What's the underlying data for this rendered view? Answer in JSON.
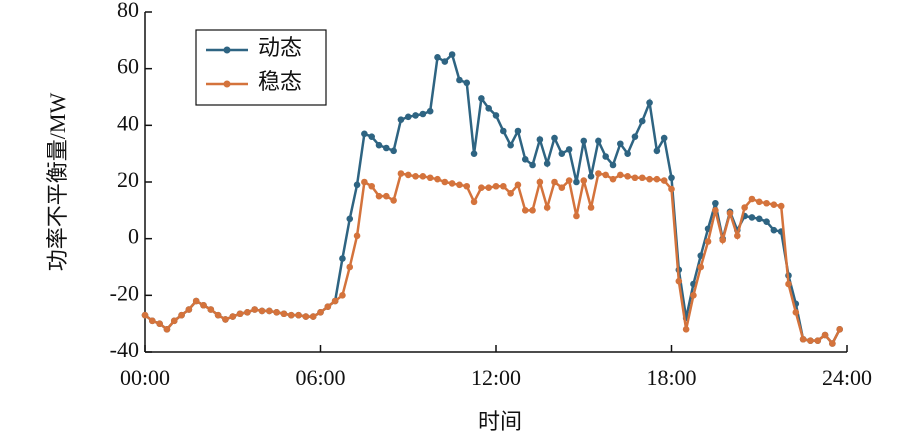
{
  "chart_data": {
    "type": "line",
    "x_label": "时间",
    "y_label": "功率不平衡量/MW",
    "x": [
      0,
      0.25,
      0.5,
      0.75,
      1,
      1.25,
      1.5,
      1.75,
      2,
      2.25,
      2.5,
      2.75,
      3,
      3.25,
      3.5,
      3.75,
      4,
      4.25,
      4.5,
      4.75,
      5,
      5.25,
      5.5,
      5.75,
      6,
      6.25,
      6.5,
      6.75,
      7,
      7.25,
      7.5,
      7.75,
      8,
      8.25,
      8.5,
      8.75,
      9,
      9.25,
      9.5,
      9.75,
      10,
      10.25,
      10.5,
      10.75,
      11,
      11.25,
      11.5,
      11.75,
      12,
      12.25,
      12.5,
      12.75,
      13,
      13.25,
      13.5,
      13.75,
      14,
      14.25,
      14.5,
      14.75,
      15,
      15.25,
      15.5,
      15.75,
      16,
      16.25,
      16.5,
      16.75,
      17,
      17.25,
      17.5,
      17.75,
      18,
      18.25,
      18.5,
      18.75,
      19,
      19.25,
      19.5,
      19.75,
      20,
      20.25,
      20.5,
      20.75,
      21,
      21.25,
      21.5,
      21.75,
      22,
      22.25,
      22.5,
      22.75,
      23,
      23.25,
      23.5,
      23.75
    ],
    "series": [
      {
        "name": "动态",
        "color": "#2e6482",
        "values": [
          -27,
          -29,
          -30,
          -32,
          -29,
          -27,
          -25,
          -22,
          -23.5,
          -25,
          -27,
          -28.5,
          -27.5,
          -26.5,
          -26,
          -25,
          -25.5,
          -25.5,
          -26,
          -26.5,
          -27,
          -27,
          -27.5,
          -27.5,
          -26,
          -24,
          -22,
          -7,
          7,
          19,
          37,
          36,
          33,
          32,
          31,
          42,
          43,
          43.5,
          44,
          45,
          64,
          62.5,
          65,
          56,
          55,
          30,
          49.5,
          46,
          43.5,
          38,
          33,
          38,
          28,
          26,
          35,
          26.5,
          35.5,
          30,
          31.5,
          20,
          34.5,
          22,
          34.5,
          29,
          26,
          33.5,
          30,
          36,
          41.5,
          48,
          31,
          35.5,
          21.5,
          -11,
          -28,
          -16,
          -6,
          3.5,
          12.5,
          0,
          9.5,
          3,
          8,
          7.5,
          7,
          6,
          3,
          2.5,
          -13,
          -23,
          -35.5,
          -36,
          -36,
          -34,
          -37,
          -32
        ]
      },
      {
        "name": "稳态",
        "color": "#d4733c",
        "values": [
          -27,
          -29,
          -30,
          -32,
          -29,
          -27,
          -25,
          -22,
          -23.5,
          -25,
          -27,
          -28.5,
          -27.5,
          -26.5,
          -26,
          -25,
          -25.5,
          -25.5,
          -26,
          -26.5,
          -27,
          -27,
          -27.5,
          -27.5,
          -26,
          -24,
          -22,
          -20,
          -10,
          1,
          20,
          18.5,
          15,
          15,
          13.5,
          23,
          22.5,
          22,
          22,
          21.5,
          21,
          20,
          19.5,
          19,
          18.5,
          13,
          18,
          18,
          18.5,
          18.5,
          16,
          19,
          10,
          10,
          20,
          11,
          20,
          18,
          20.5,
          8,
          20.5,
          11,
          23,
          22.5,
          21,
          22.5,
          22,
          21.5,
          21.5,
          21,
          21,
          20.5,
          17.5,
          -15,
          -32,
          -20,
          -10,
          -1,
          10,
          -0.5,
          9,
          1,
          11,
          14,
          13,
          12.5,
          12,
          11.5,
          -16,
          -26,
          -35.5,
          -36,
          -36,
          -34,
          -37,
          -32
        ]
      }
    ],
    "xlim": [
      0,
      24
    ],
    "xticks": [
      {
        "value": 0,
        "label": "00:00"
      },
      {
        "value": 6,
        "label": "06:00"
      },
      {
        "value": 12,
        "label": "12:00"
      },
      {
        "value": 18,
        "label": "18:00"
      },
      {
        "value": 24,
        "label": "24:00"
      }
    ],
    "ylim": [
      -40,
      80
    ],
    "yticks": [
      -40,
      -20,
      0,
      20,
      40,
      60,
      80
    ],
    "legend": "upper-left"
  }
}
